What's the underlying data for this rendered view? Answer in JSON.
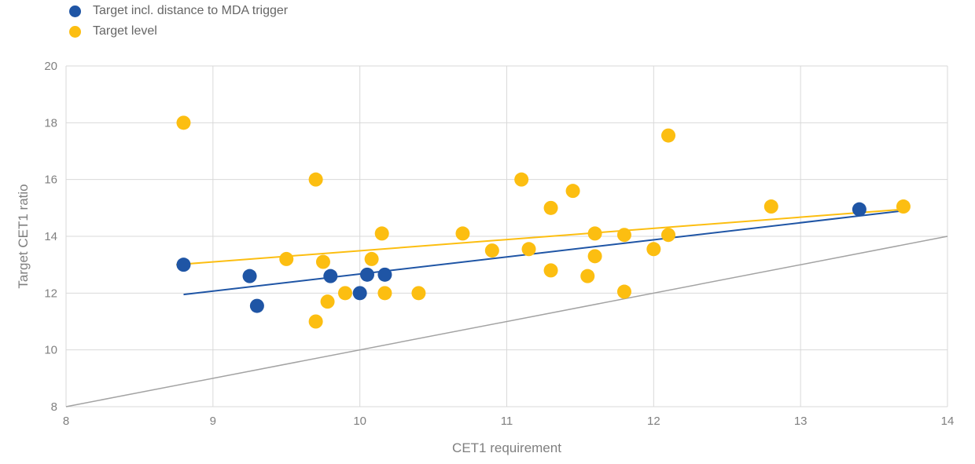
{
  "axes": {
    "x_label": "CET1 requirement",
    "y_label": "Target CET1 ratio"
  },
  "chart_data": {
    "type": "scatter",
    "title": "",
    "xlabel": "CET1 requirement",
    "ylabel": "Target CET1 ratio",
    "xlim": [
      8,
      14
    ],
    "ylim": [
      8,
      20
    ],
    "xticks": [
      8,
      9,
      10,
      11,
      12,
      13,
      14
    ],
    "yticks": [
      8,
      10,
      12,
      14,
      16,
      18,
      20
    ],
    "grid": true,
    "legend_position": "top-left",
    "series": [
      {
        "id": "mda-distance",
        "name": "Target incl. distance to MDA trigger",
        "color": "#1f55a5",
        "z": 1,
        "points": [
          [
            8.8,
            13.0
          ],
          [
            9.25,
            12.6
          ],
          [
            9.3,
            11.55
          ],
          [
            9.8,
            12.6
          ],
          [
            10.05,
            12.65
          ],
          [
            10.17,
            12.65
          ],
          [
            10.0,
            12.0
          ],
          [
            13.4,
            14.95
          ]
        ],
        "trendline": {
          "x1": 8.8,
          "y1": 11.95,
          "x2": 13.7,
          "y2": 14.9
        }
      },
      {
        "id": "level",
        "name": "Target level",
        "color": "#fcbe11",
        "z": 0,
        "points": [
          [
            8.8,
            18.0
          ],
          [
            9.7,
            16.0
          ],
          [
            12.1,
            17.55
          ],
          [
            11.1,
            16.0
          ],
          [
            11.45,
            15.6
          ],
          [
            11.3,
            15.0
          ],
          [
            12.8,
            15.05
          ],
          [
            13.7,
            15.05
          ],
          [
            10.15,
            14.1
          ],
          [
            10.7,
            14.1
          ],
          [
            11.6,
            14.1
          ],
          [
            11.8,
            14.05
          ],
          [
            12.1,
            14.05
          ],
          [
            10.9,
            13.5
          ],
          [
            11.15,
            13.55
          ],
          [
            12.0,
            13.55
          ],
          [
            9.5,
            13.2
          ],
          [
            9.75,
            13.1
          ],
          [
            10.08,
            13.2
          ],
          [
            11.6,
            13.3
          ],
          [
            11.3,
            12.8
          ],
          [
            11.55,
            12.6
          ],
          [
            9.9,
            12.0
          ],
          [
            10.17,
            12.0
          ],
          [
            10.4,
            12.0
          ],
          [
            11.8,
            12.05
          ],
          [
            9.78,
            11.7
          ],
          [
            9.7,
            11.0
          ]
        ],
        "trendline": {
          "x1": 8.75,
          "y1": 13.0,
          "x2": 13.7,
          "y2": 14.95
        }
      }
    ],
    "reference_line": {
      "name": "identity-line",
      "x1": 8,
      "y1": 8,
      "x2": 14,
      "y2": 14,
      "color": "#a3a3a3"
    }
  },
  "colors": {
    "grid": "#d9d9d9",
    "tick_text": "#808080",
    "axis_label_text": "#7f7f7f",
    "legend_text": "#666666",
    "background": "#ffffff"
  }
}
